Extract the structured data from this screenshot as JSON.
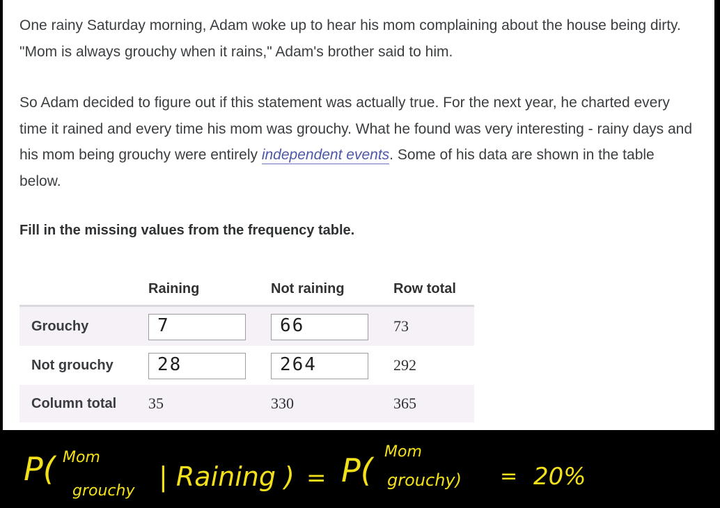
{
  "problem": {
    "paragraph_1": "One rainy Saturday morning, Adam woke up to hear his mom complaining about the house being dirty. \"Mom is always grouchy when it rains,\" Adam's brother said to him.",
    "paragraph_2_before": "So Adam decided to figure out if this statement was actually true. For the next year, he charted every time it rained and every time his mom was grouchy. What he found was very interesting - rainy days and his mom being grouchy were entirely ",
    "paragraph_2_term": "independent events",
    "paragraph_2_after": ". Some of his data are shown in the table below.",
    "instruction": "Fill in the missing values from the frequency table."
  },
  "table": {
    "headers": {
      "col1": "Raining",
      "col2": "Not raining",
      "col3": "Row total"
    },
    "rows": [
      {
        "label": "Grouchy",
        "raining_input": "7",
        "not_raining_input": "66",
        "total": "73"
      },
      {
        "label": "Not grouchy",
        "raining_input": "28",
        "not_raining_input": "264",
        "total": "292"
      }
    ],
    "column_total": {
      "label": "Column total",
      "raining": "35",
      "not_raining": "330",
      "total": "365"
    }
  },
  "annotation": {
    "p_left_open": "P(",
    "mom": "Mom",
    "grouchy": "grouchy",
    "given_raining": "| Raining )",
    "equals": "=",
    "p_right_open": "P(",
    "mom_right": "Mom",
    "grouchy_right": "grouchy)",
    "equals_2": "=",
    "result": "20%",
    "ink_color": "#f2e01a"
  }
}
